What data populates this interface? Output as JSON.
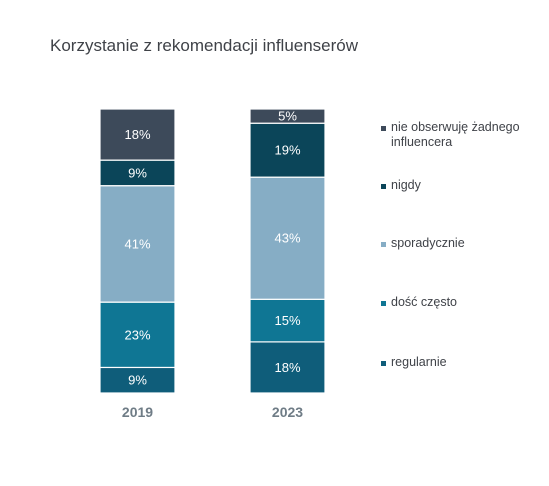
{
  "chart_data": {
    "type": "bar",
    "stacked": true,
    "percent": true,
    "title": "Korzystanie z rekomendacji influenserów",
    "xlabel": "",
    "ylabel": "",
    "ylim": [
      0,
      100
    ],
    "grid": false,
    "legend_position": "right",
    "categories": [
      "2019",
      "2023"
    ],
    "series": [
      {
        "name": "regularnie",
        "values": [
          9,
          18
        ],
        "color": "#0f5d7a"
      },
      {
        "name": "dość często",
        "values": [
          23,
          15
        ],
        "color": "#0f7694"
      },
      {
        "name": "sporadycznie",
        "values": [
          41,
          43
        ],
        "color": "#86adc5"
      },
      {
        "name": "nigdy",
        "values": [
          9,
          19
        ],
        "color": "#0b4559"
      },
      {
        "name": "nie obserwuję żadnego influencera",
        "values": [
          18,
          5
        ],
        "color": "#3d4a5a"
      }
    ],
    "value_format": "{v}%"
  }
}
